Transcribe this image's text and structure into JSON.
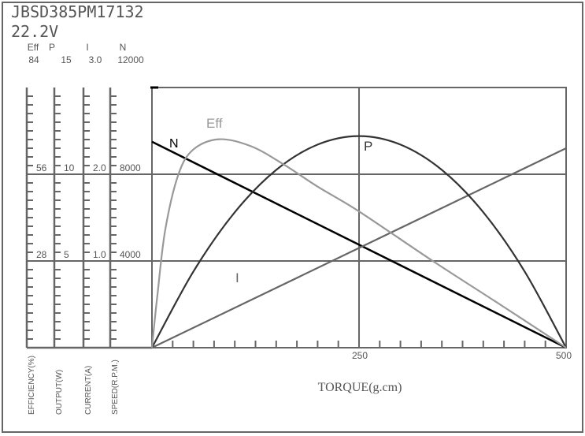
{
  "header": {
    "model": "JBSD385PM17132",
    "voltage": "22.2V"
  },
  "colors": {
    "frame": "#666666",
    "N": "#000000",
    "Eff": "#999999",
    "P": "#333333",
    "I": "#666666"
  },
  "chart_data": {
    "type": "line",
    "xlabel": "TORQUE(g.cm)",
    "xlim": [
      0,
      500
    ],
    "x_ticks": [
      "250",
      "500"
    ],
    "x_minor_step": 25,
    "grid": true,
    "scales": [
      {
        "key": "Eff",
        "header": "Eff",
        "label": "EFFICIENCY(%)",
        "max": 84,
        "ticks": [
          "84",
          "56",
          "28"
        ]
      },
      {
        "key": "P",
        "header": "P",
        "label": "OUTPUT(W)",
        "max": 15,
        "ticks": [
          "15",
          "10",
          "5"
        ]
      },
      {
        "key": "I",
        "header": "I",
        "label": "CURRENT(A)",
        "max": 3.0,
        "ticks": [
          "3.0",
          "2.0",
          "1.0"
        ]
      },
      {
        "key": "N",
        "header": "N",
        "label": "SPEED(R.P.M.)",
        "max": 12000,
        "ticks": [
          "12000",
          "8000",
          "4000"
        ]
      }
    ],
    "series": [
      {
        "name": "N",
        "points": [
          [
            0,
            9500
          ],
          [
            500,
            0
          ]
        ]
      },
      {
        "name": "I",
        "points": [
          [
            0,
            0
          ],
          [
            500,
            2.3
          ]
        ]
      },
      {
        "name": "P",
        "points": [
          [
            0,
            0
          ],
          [
            50,
            4.39
          ],
          [
            100,
            7.81
          ],
          [
            150,
            10.25
          ],
          [
            200,
            11.71
          ],
          [
            250,
            12.2
          ],
          [
            300,
            11.71
          ],
          [
            350,
            10.25
          ],
          [
            400,
            7.81
          ],
          [
            450,
            4.39
          ],
          [
            500,
            0
          ]
        ]
      },
      {
        "name": "Eff",
        "points": [
          [
            0,
            0
          ],
          [
            3,
            8
          ],
          [
            6.6,
            17
          ],
          [
            16,
            38
          ],
          [
            32,
            56
          ],
          [
            50,
            64
          ],
          [
            81,
            67.3
          ],
          [
            120,
            65
          ],
          [
            160,
            59
          ],
          [
            200,
            52
          ],
          [
            250,
            44
          ],
          [
            339,
            28
          ],
          [
            420,
            14
          ],
          [
            500,
            0
          ]
        ]
      }
    ]
  }
}
